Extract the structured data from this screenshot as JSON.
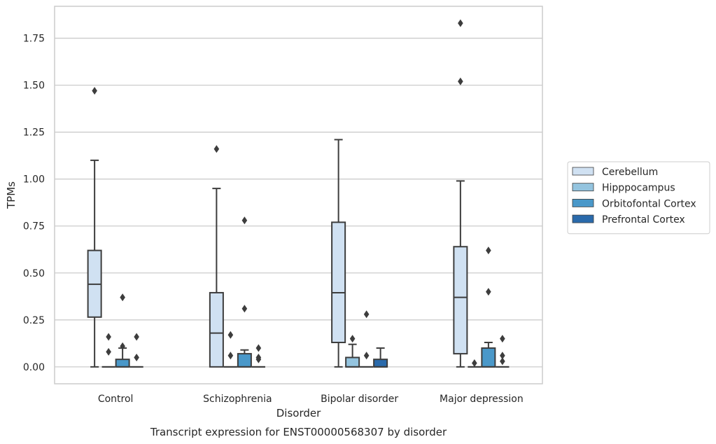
{
  "chart_data": {
    "type": "box",
    "caption": "Transcript expression for ENST00000568307 by disorder",
    "xlabel": "Disorder",
    "ylabel": "TPMs",
    "ylim": [
      -0.09,
      1.92
    ],
    "yticks": [
      0.0,
      0.25,
      0.5,
      0.75,
      1.0,
      1.25,
      1.5,
      1.75
    ],
    "ytick_labels": [
      "0.00",
      "0.25",
      "0.50",
      "0.75",
      "1.00",
      "1.25",
      "1.50",
      "1.75"
    ],
    "grid": "horizontal",
    "legend_position": "right",
    "categories": [
      "Control",
      "Schizophrenia",
      "Bipolar disorder",
      "Major depression"
    ],
    "series": [
      {
        "name": "Cerebellum",
        "color": "#d0e1f2",
        "boxes": [
          {
            "q1": 0.265,
            "median": 0.44,
            "q3": 0.62,
            "whisker_low": 0.0,
            "whisker_high": 1.1,
            "outliers": [
              1.47
            ]
          },
          {
            "q1": 0.0,
            "median": 0.18,
            "q3": 0.395,
            "whisker_low": 0.0,
            "whisker_high": 0.95,
            "outliers": [
              1.16
            ]
          },
          {
            "q1": 0.13,
            "median": 0.395,
            "q3": 0.77,
            "whisker_low": 0.0,
            "whisker_high": 1.21,
            "outliers": []
          },
          {
            "q1": 0.07,
            "median": 0.37,
            "q3": 0.64,
            "whisker_low": 0.0,
            "whisker_high": 0.99,
            "outliers": [
              1.52,
              1.83
            ]
          }
        ]
      },
      {
        "name": "Hipppocampus",
        "color": "#94c4df",
        "boxes": [
          {
            "q1": 0.0,
            "median": 0.0,
            "q3": 0.0,
            "whisker_low": 0.0,
            "whisker_high": 0.0,
            "outliers": [
              0.08,
              0.16
            ]
          },
          {
            "q1": 0.0,
            "median": 0.0,
            "q3": 0.0,
            "whisker_low": 0.0,
            "whisker_high": 0.0,
            "outliers": [
              0.06,
              0.17
            ]
          },
          {
            "q1": 0.0,
            "median": 0.0,
            "q3": 0.05,
            "whisker_low": 0.0,
            "whisker_high": 0.12,
            "outliers": [
              0.15
            ]
          },
          {
            "q1": 0.0,
            "median": 0.0,
            "q3": 0.0,
            "whisker_low": 0.0,
            "whisker_high": 0.0,
            "outliers": [
              0.02
            ]
          }
        ]
      },
      {
        "name": "Orbitofontal Cortex",
        "color": "#4a98c9",
        "boxes": [
          {
            "q1": 0.0,
            "median": 0.0,
            "q3": 0.04,
            "whisker_low": 0.0,
            "whisker_high": 0.1,
            "outliers": [
              0.11,
              0.37
            ]
          },
          {
            "q1": 0.0,
            "median": 0.0,
            "q3": 0.07,
            "whisker_low": 0.0,
            "whisker_high": 0.09,
            "outliers": [
              0.31,
              0.78
            ]
          },
          {
            "q1": 0.0,
            "median": 0.0,
            "q3": 0.0,
            "whisker_low": 0.0,
            "whisker_high": 0.0,
            "outliers": [
              0.06,
              0.28
            ]
          },
          {
            "q1": 0.0,
            "median": 0.0,
            "q3": 0.1,
            "whisker_low": 0.0,
            "whisker_high": 0.13,
            "outliers": [
              0.4,
              0.62
            ]
          }
        ]
      },
      {
        "name": "Prefrontal Cortex",
        "color": "#2a6aab",
        "boxes": [
          {
            "q1": 0.0,
            "median": 0.0,
            "q3": 0.0,
            "whisker_low": 0.0,
            "whisker_high": 0.0,
            "outliers": [
              0.05,
              0.16
            ]
          },
          {
            "q1": 0.0,
            "median": 0.0,
            "q3": 0.0,
            "whisker_low": 0.0,
            "whisker_high": 0.0,
            "outliers": [
              0.04,
              0.05,
              0.1
            ]
          },
          {
            "q1": 0.0,
            "median": 0.0,
            "q3": 0.04,
            "whisker_low": 0.0,
            "whisker_high": 0.1,
            "outliers": []
          },
          {
            "q1": 0.0,
            "median": 0.0,
            "q3": 0.0,
            "whisker_low": 0.0,
            "whisker_high": 0.0,
            "outliers": [
              0.03,
              0.06,
              0.15
            ]
          }
        ]
      }
    ]
  }
}
